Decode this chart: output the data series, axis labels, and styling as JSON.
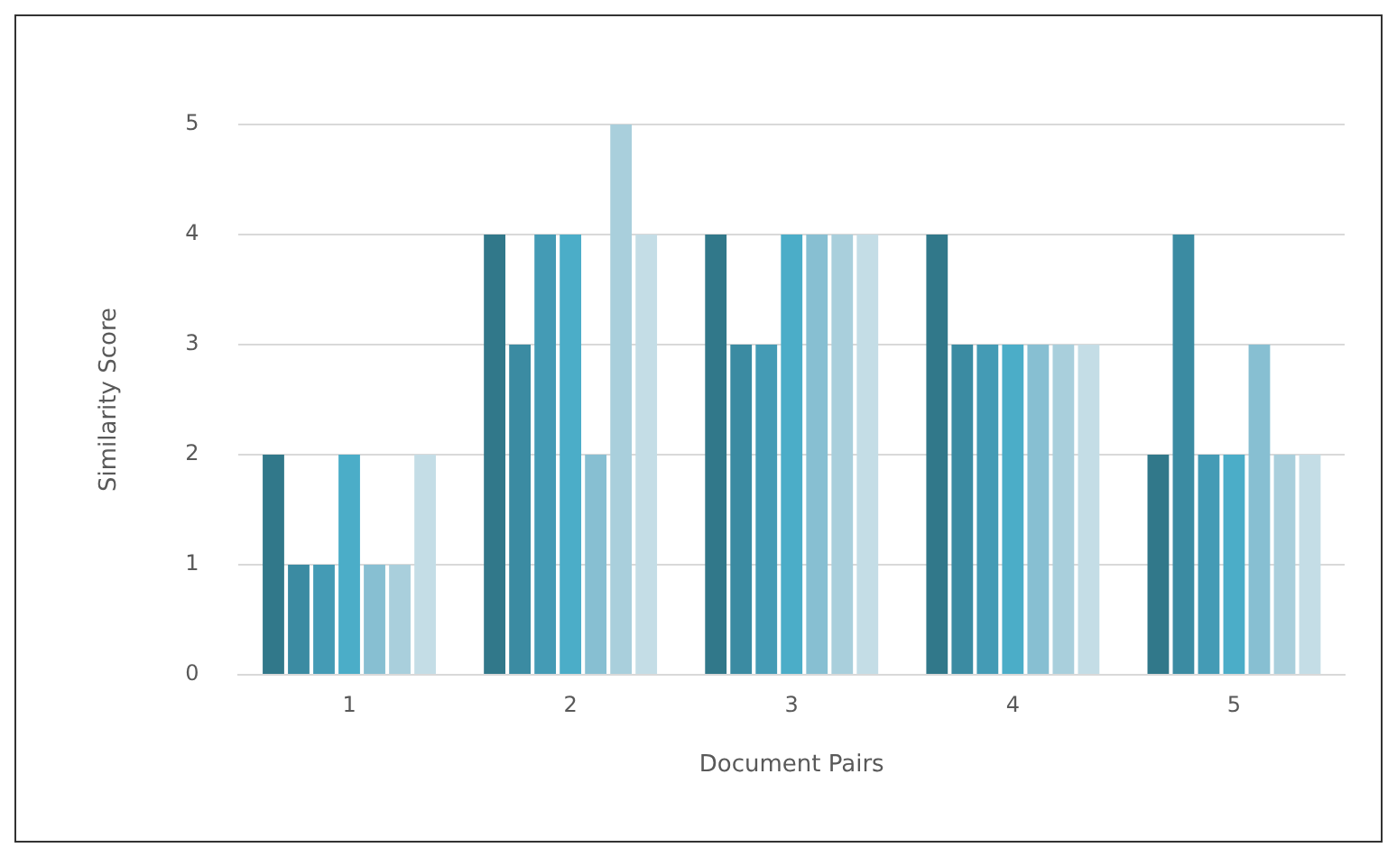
{
  "chart_data": {
    "type": "bar",
    "xlabel": "Document Pairs",
    "ylabel": "Similarity Score",
    "categories": [
      "1",
      "2",
      "3",
      "4",
      "5"
    ],
    "series": [
      {
        "color": "#31788a",
        "values": [
          2,
          4,
          4,
          4,
          2
        ]
      },
      {
        "color": "#3b8ba2",
        "values": [
          1,
          3,
          3,
          3,
          4
        ]
      },
      {
        "color": "#449bb5",
        "values": [
          1,
          4,
          3,
          3,
          2
        ]
      },
      {
        "color": "#4badc8",
        "values": [
          2,
          4,
          4,
          3,
          2
        ]
      },
      {
        "color": "#87bfd2",
        "values": [
          1,
          2,
          4,
          3,
          3
        ]
      },
      {
        "color": "#a9cfdc",
        "values": [
          1,
          5,
          4,
          3,
          2
        ]
      },
      {
        "color": "#c4dde6",
        "values": [
          2,
          4,
          4,
          3,
          2
        ]
      }
    ],
    "ylim": [
      0,
      5
    ],
    "yticks": [
      0,
      1,
      2,
      3,
      4,
      5
    ],
    "grid": "y",
    "legend": false
  }
}
